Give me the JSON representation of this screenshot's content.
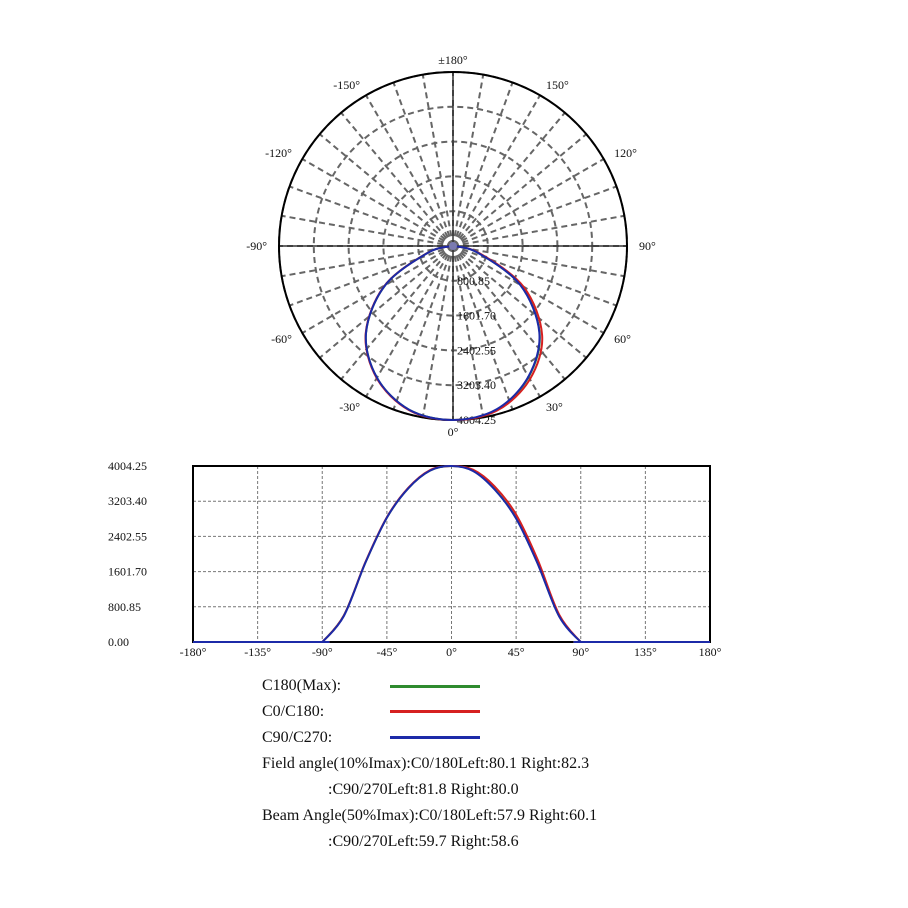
{
  "chart_data": [
    {
      "type": "polar",
      "angle_labels": [
        {
          "deg": 180,
          "label": "±180°"
        },
        {
          "deg": 150,
          "label": "150°"
        },
        {
          "deg": 120,
          "label": "120°"
        },
        {
          "deg": 90,
          "label": "90°"
        },
        {
          "deg": 60,
          "label": "60°"
        },
        {
          "deg": 30,
          "label": "30°"
        },
        {
          "deg": 0,
          "label": "0°"
        },
        {
          "deg": -30,
          "label": "-30°"
        },
        {
          "deg": -60,
          "label": "-60°"
        },
        {
          "deg": -90,
          "label": "-90°"
        },
        {
          "deg": -120,
          "label": "-120°"
        },
        {
          "deg": -150,
          "label": "-150°"
        }
      ],
      "radial_ticks": [
        "800.85",
        "1601.70",
        "2402.55",
        "3203.40",
        "4004.25"
      ],
      "rmax": 4004.25,
      "series": [
        {
          "key": "c180",
          "color": "#2e8b2e",
          "angles": [
            -90,
            -75,
            -60,
            -45,
            -30,
            -15,
            0,
            15,
            30,
            45,
            60,
            75,
            90
          ],
          "values": [
            0,
            600,
            1800,
            2830,
            3500,
            3900,
            4004,
            3900,
            3480,
            2820,
            1790,
            590,
            0
          ]
        },
        {
          "key": "c0c180",
          "color": "#d62020",
          "angles": [
            -90,
            -75,
            -60,
            -45,
            -30,
            -15,
            0,
            15,
            30,
            45,
            60,
            75,
            90
          ],
          "values": [
            0,
            600,
            1810,
            2840,
            3510,
            3910,
            4004,
            3920,
            3540,
            2900,
            1870,
            620,
            0
          ]
        },
        {
          "key": "c90c270",
          "color": "#1c2aa8",
          "angles": [
            -90,
            -75,
            -60,
            -45,
            -30,
            -15,
            0,
            15,
            30,
            45,
            60,
            75,
            90
          ],
          "values": [
            0,
            590,
            1800,
            2830,
            3500,
            3900,
            4004,
            3890,
            3470,
            2810,
            1780,
            580,
            0
          ]
        }
      ]
    },
    {
      "type": "line",
      "x_ticks": [
        "-180°",
        "-135°",
        "-90°",
        "-45°",
        "0°",
        "45°",
        "90°",
        "135°",
        "180°"
      ],
      "xlim": [
        -180,
        180
      ],
      "y_ticks": [
        "4004.25",
        "3203.40",
        "2402.55",
        "1601.70",
        "800.85",
        "0.00"
      ],
      "ylim": [
        0,
        4004.25
      ],
      "grid": true,
      "series": [
        {
          "key": "c180",
          "color": "#2e8b2e",
          "x": [
            -180,
            -92,
            -90,
            -75,
            -60,
            -45,
            -30,
            -15,
            0,
            15,
            30,
            45,
            60,
            75,
            90,
            92,
            180
          ],
          "y": [
            0,
            0,
            0,
            600,
            1800,
            2830,
            3500,
            3900,
            4004,
            3900,
            3480,
            2820,
            1790,
            590,
            0,
            0,
            0
          ]
        },
        {
          "key": "c0c180",
          "color": "#d62020",
          "x": [
            -180,
            -92,
            -90,
            -75,
            -60,
            -45,
            -30,
            -15,
            0,
            15,
            30,
            45,
            60,
            75,
            90,
            92,
            180
          ],
          "y": [
            0,
            0,
            0,
            600,
            1810,
            2840,
            3510,
            3910,
            4004,
            3920,
            3540,
            2900,
            1870,
            620,
            0,
            0,
            0
          ]
        },
        {
          "key": "c90c270",
          "color": "#1c2aa8",
          "x": [
            -180,
            -92,
            -90,
            -75,
            -60,
            -45,
            -30,
            -15,
            0,
            15,
            30,
            45,
            60,
            75,
            90,
            92,
            180
          ],
          "y": [
            0,
            0,
            0,
            590,
            1800,
            2830,
            3500,
            3900,
            4004,
            3890,
            3470,
            2810,
            1780,
            580,
            0,
            0,
            0
          ]
        }
      ]
    }
  ],
  "legend": [
    {
      "label": "C180(Max):",
      "color": "#2e8b2e"
    },
    {
      "label": "C0/C180:",
      "color": "#d62020"
    },
    {
      "label": "C90/C270:",
      "color": "#1c2aa8"
    }
  ],
  "info": {
    "field_line1": "Field angle(10%Imax):C0/180Left:80.1 Right:82.3",
    "field_line2": ":C90/270Left:81.8 Right:80.0",
    "beam_line1": "Beam Angle(50%Imax):C0/180Left:57.9 Right:60.1",
    "beam_line2": ":C90/270Left:59.7 Right:58.6"
  }
}
